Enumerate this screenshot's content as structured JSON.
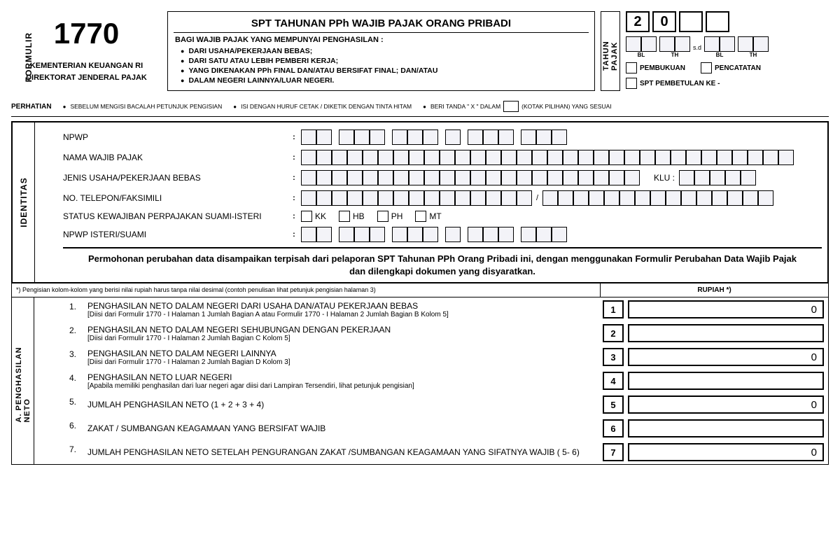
{
  "header": {
    "formulir_label": "FORMULIR",
    "form_number": "1770",
    "ministry1": "KEMENTERIAN KEUANGAN RI",
    "ministry2": "DIREKTORAT JENDERAL PAJAK",
    "title": "SPT  TAHUNAN PPh WAJIB PAJAK ORANG PRIBADI",
    "subtitle": "BAGI WAJIB PAJAK YANG MEMPUNYAI PENGHASILAN :",
    "bullets": [
      "DARI USAHA/PEKERJAAN BEBAS;",
      "DARI SATU ATAU LEBIH PEMBERI KERJA;",
      "YANG DIKENAKAN PPh FINAL DAN/ATAU BERSIFAT FINAL; DAN/ATAU",
      "DALAM NEGERI LAINNYA/LUAR NEGERI."
    ],
    "tax_year_label": "TAHUN PAJAK",
    "year_digits": [
      "2",
      "0",
      "",
      ""
    ],
    "sd": "s.d",
    "bl": "BL",
    "th": "TH",
    "pembukuan": "PEMBUKUAN",
    "pencatatan": "PENCATATAN",
    "spt_pembetulan": "SPT PEMBETULAN KE -"
  },
  "perhatian": {
    "label": "PERHATIAN",
    "items": [
      "SEBELUM MENGISI BACALAH PETUNJUK PENGISIAN",
      "ISI DENGAN HURUF CETAK / DIKETIK DENGAN TINTA HITAM",
      "BERI TANDA \" X \" DALAM"
    ],
    "trailing": "(KOTAK PILIHAN) YANG SESUAI"
  },
  "identity": {
    "section_label": "IDENTITAS",
    "npwp": "NPWP",
    "nama": "NAMA WAJIB PAJAK",
    "jenis": "JENIS USAHA/PEKERJAAN BEBAS",
    "klu": "KLU :",
    "telepon": "NO. TELEPON/FAKSIMILI",
    "status": "STATUS KEWAJIBAN PERPAJAKAN SUAMI-ISTERI",
    "kk": "KK",
    "hb": "HB",
    "ph": "PH",
    "mt": "MT",
    "npwp_isteri": "NPWP ISTERI/SUAMI",
    "notice": "Permohonan perubahan data disampaikan terpisah dari pelaporan SPT Tahunan PPh Orang Pribadi ini, dengan menggunakan Formulir Perubahan Data Wajib Pajak dan dilengkapi dokumen yang disyaratkan."
  },
  "instruction": {
    "left": "*) Pengisian kolom-kolom yang berisi nilai rupiah harus tanpa nilai desimal (contoh penulisan lihat petunjuk pengisian halaman 3)",
    "right": "RUPIAH *)"
  },
  "income": {
    "section_label": "A. PENGHASILAN NETO",
    "rows": [
      {
        "num": "1.",
        "text": "PENGHASILAN NETO DALAM NEGERI DARI USAHA DAN/ATAU PEKERJAAN BEBAS",
        "sub": "[Diisi dari Formulir 1770 - I Halaman 1 Jumlah Bagian A atau Formulir 1770 - I Halaman 2 Jumlah Bagian B Kolom 5]",
        "box": "1",
        "val": "0"
      },
      {
        "num": "2.",
        "text": "PENGHASILAN NETO DALAM NEGERI SEHUBUNGAN DENGAN PEKERJAAN",
        "sub": "[Diisi dari Formulir 1770 - I Halaman 2 Jumlah Bagian C Kolom 5]",
        "box": "2",
        "val": ""
      },
      {
        "num": "3.",
        "text": "PENGHASILAN NETO DALAM NEGERI LAINNYA",
        "sub": "[Diisi dari Formulir 1770 - I Halaman 2 Jumlah Bagian D  Kolom 3]",
        "box": "3",
        "val": "0"
      },
      {
        "num": "4.",
        "text": "PENGHASILAN NETO LUAR NEGERI",
        "sub": "[Apabila memiliki penghasilan dari luar negeri agar diisi dari Lampiran Tersendiri, lihat petunjuk pengisian]",
        "box": "4",
        "val": ""
      },
      {
        "num": "5.",
        "text": "JUMLAH PENGHASILAN NETO (1 + 2 + 3 + 4)",
        "sub": "",
        "box": "5",
        "val": "0"
      },
      {
        "num": "6.",
        "text": "ZAKAT / SUMBANGAN KEAGAMAAN YANG BERSIFAT WAJIB",
        "sub": "",
        "box": "6",
        "val": ""
      },
      {
        "num": "7.",
        "text": "JUMLAH PENGHASILAN NETO SETELAH PENGURANGAN ZAKAT /SUMBANGAN KEAGAMAAN YANG SIFATNYA WAJIB ( 5- 6)",
        "sub": "",
        "box": "7",
        "val": "0"
      }
    ]
  },
  "layout": {
    "npwp_groups": [
      2,
      3,
      3,
      1,
      3,
      3
    ],
    "nama_cells": 32,
    "jenis_cells": 22,
    "klu_cells": 5,
    "tel_group1": 15,
    "tel_group2": 15,
    "npwp_isteri_groups": [
      2,
      3,
      3,
      1,
      3,
      3
    ]
  }
}
